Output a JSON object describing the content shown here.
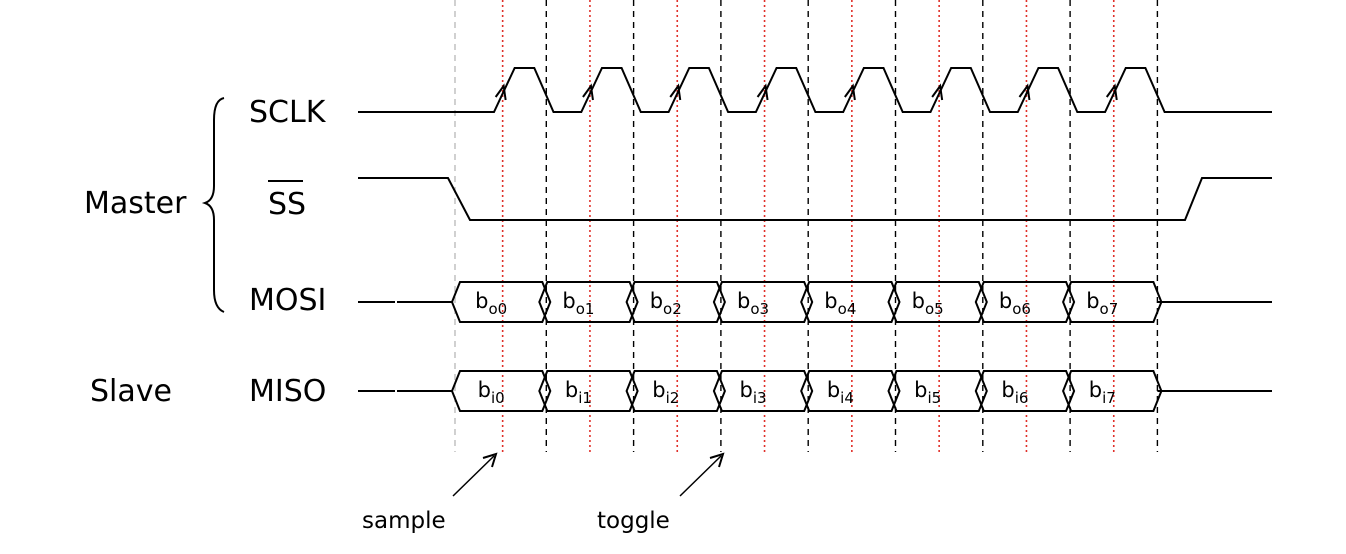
{
  "groups": {
    "master": "Master",
    "slave": "Slave"
  },
  "signals": {
    "sclk": "SCLK",
    "ss": "SS",
    "mosi": "MOSI",
    "miso": "MISO"
  },
  "mosi_bits": [
    {
      "base": "b",
      "sub": "o0"
    },
    {
      "base": "b",
      "sub": "o1"
    },
    {
      "base": "b",
      "sub": "o2"
    },
    {
      "base": "b",
      "sub": "o3"
    },
    {
      "base": "b",
      "sub": "o4"
    },
    {
      "base": "b",
      "sub": "o5"
    },
    {
      "base": "b",
      "sub": "o6"
    },
    {
      "base": "b",
      "sub": "o7"
    }
  ],
  "miso_bits": [
    {
      "base": "b",
      "sub": "i0"
    },
    {
      "base": "b",
      "sub": "i1"
    },
    {
      "base": "b",
      "sub": "i2"
    },
    {
      "base": "b",
      "sub": "i3"
    },
    {
      "base": "b",
      "sub": "i4"
    },
    {
      "base": "b",
      "sub": "i5"
    },
    {
      "base": "b",
      "sub": "i6"
    },
    {
      "base": "b",
      "sub": "i7"
    }
  ],
  "annotations": {
    "sample": "sample",
    "toggle": "toggle"
  }
}
